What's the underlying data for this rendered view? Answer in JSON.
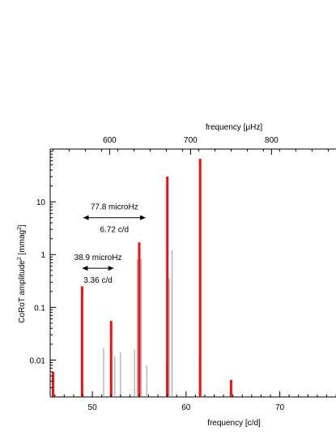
{
  "chart_data": {
    "type": "bar",
    "xlabel": "frequency [c/d]",
    "x2label_prefix": "frequency [",
    "x2label_unit": "μHz",
    "x2label_suffix": "]",
    "ylabel_main": "CoRoT amplitude",
    "ylabel_sup1": "2",
    "ylabel_unit": " [mmag",
    "ylabel_sup2": "2",
    "ylabel_end": "]",
    "xlim": [
      45.5,
      76
    ],
    "ylim": [
      0.002,
      100
    ],
    "yscale": "log",
    "grid": false,
    "xticks": [
      {
        "v": 50,
        "label": "50"
      },
      {
        "v": 60,
        "label": "60"
      },
      {
        "v": 70,
        "label": "70"
      }
    ],
    "x2ticks": [
      {
        "v": 600,
        "label": "600"
      },
      {
        "v": 700,
        "label": "700"
      },
      {
        "v": 800,
        "label": "800"
      }
    ],
    "yticks": [
      {
        "v": 0.01,
        "label": "0.01"
      },
      {
        "v": 0.1,
        "label": "0.1"
      },
      {
        "v": 1,
        "label": "1"
      },
      {
        "v": 10,
        "label": "10"
      }
    ],
    "series": [
      {
        "color": "#ee1111",
        "points": [
          [
            45.8,
            0.006
          ],
          [
            48.9,
            0.25
          ],
          [
            52.0,
            0.055
          ],
          [
            55.0,
            1.7
          ],
          [
            58.0,
            30
          ],
          [
            61.5,
            65
          ],
          [
            64.8,
            0.0042
          ]
        ]
      },
      {
        "color": "#999999",
        "points": [
          [
            51.2,
            0.017
          ],
          [
            52.4,
            0.012
          ],
          [
            53.0,
            0.014
          ],
          [
            54.5,
            0.016
          ],
          [
            54.8,
            0.8
          ],
          [
            55.2,
            0.85
          ],
          [
            55.8,
            0.008
          ],
          [
            57.9,
            0.008
          ],
          [
            58.2,
            0.35
          ],
          [
            58.5,
            1.2
          ],
          [
            61.4,
            0.012
          ]
        ]
      }
    ],
    "annotations": [
      {
        "text_top": "77.8 microHz",
        "text_bottom": "6.72 c/d",
        "x1": 49.0,
        "x2": 55.7,
        "y": 5.0
      },
      {
        "text_top": "38.9 microHz",
        "text_bottom": "3.36 c/d",
        "x1": 48.9,
        "x2": 52.3,
        "y": 0.55
      }
    ]
  }
}
